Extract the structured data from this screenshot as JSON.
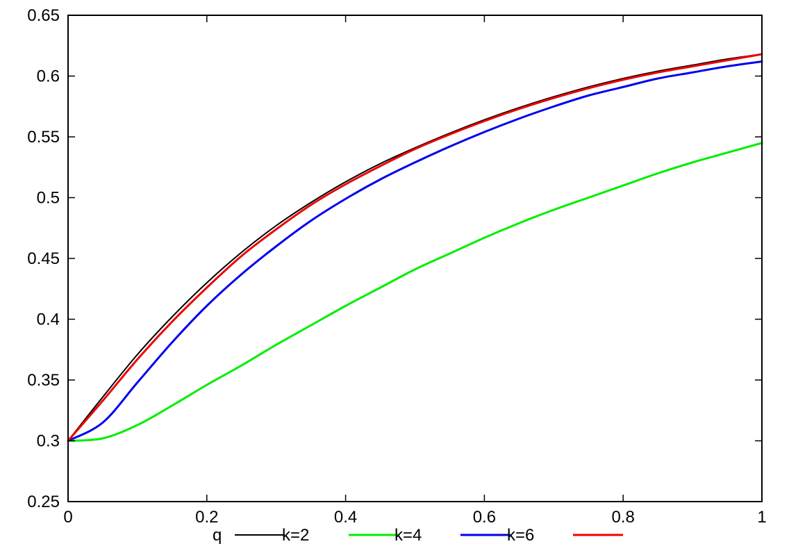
{
  "chart_data": {
    "type": "line",
    "title": "",
    "xlabel": "",
    "ylabel": "",
    "xlim": [
      0,
      1
    ],
    "ylim": [
      0.25,
      0.65
    ],
    "xticks": [
      "0",
      "0.2",
      "0.4",
      "0.6",
      "0.8",
      "1"
    ],
    "yticks": [
      "0.25",
      "0.3",
      "0.35",
      "0.4",
      "0.45",
      "0.5",
      "0.55",
      "0.6",
      "0.65"
    ],
    "grid": false,
    "legend": {
      "placement": "bottom",
      "prefix": "q",
      "entries": [
        {
          "label": "k=2",
          "color": "#000000"
        },
        {
          "label": "k=4",
          "color": "#00ee00"
        },
        {
          "label": "k=6",
          "color": "#0000ee"
        },
        {
          "label": "",
          "color": "#ee0000"
        }
      ]
    },
    "x": [
      0,
      0.05,
      0.1,
      0.15,
      0.2,
      0.25,
      0.3,
      0.35,
      0.4,
      0.45,
      0.5,
      0.55,
      0.6,
      0.65,
      0.7,
      0.75,
      0.8,
      0.85,
      0.9,
      0.95,
      1.0
    ],
    "series": [
      {
        "color": "#000000",
        "values": [
          0.3,
          0.336,
          0.371,
          0.402,
          0.43,
          0.455,
          0.477,
          0.496,
          0.513,
          0.528,
          0.541,
          0.553,
          0.564,
          0.574,
          0.583,
          0.591,
          0.598,
          0.604,
          0.609,
          0.614,
          0.618
        ]
      },
      {
        "color": "#00ee00",
        "values": [
          0.3,
          0.302,
          0.313,
          0.329,
          0.346,
          0.362,
          0.379,
          0.395,
          0.411,
          0.426,
          0.441,
          0.454,
          0.467,
          0.479,
          0.49,
          0.5,
          0.51,
          0.52,
          0.529,
          0.537,
          0.545
        ]
      },
      {
        "color": "#0000ee",
        "values": [
          0.3,
          0.315,
          0.348,
          0.381,
          0.411,
          0.437,
          0.46,
          0.481,
          0.499,
          0.515,
          0.529,
          0.542,
          0.554,
          0.565,
          0.575,
          0.584,
          0.591,
          0.598,
          0.603,
          0.608,
          0.612
        ]
      },
      {
        "color": "#ee0000",
        "values": [
          0.3,
          0.333,
          0.367,
          0.398,
          0.426,
          0.452,
          0.474,
          0.494,
          0.511,
          0.526,
          0.54,
          0.552,
          0.563,
          0.573,
          0.582,
          0.59,
          0.597,
          0.603,
          0.608,
          0.613,
          0.618
        ]
      }
    ]
  }
}
